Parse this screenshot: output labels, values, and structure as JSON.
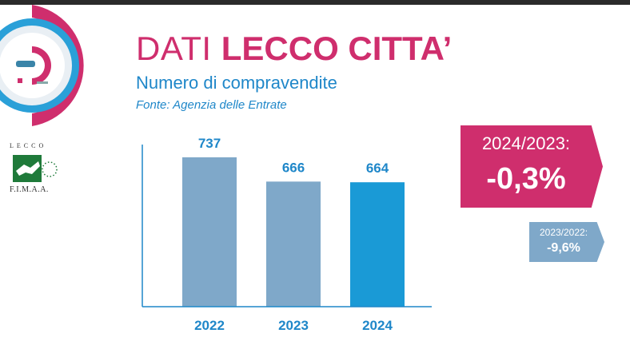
{
  "header": {
    "title_light": "DATI ",
    "title_bold": "LECCO CITTA’",
    "subtitle": "Numero di compravendite",
    "source": "Fonte: Agenzia delle Entrate"
  },
  "logo": {
    "fimaa_top": "LECCO",
    "fimaa_bottom": "F.I.M.A.A."
  },
  "badges": {
    "main": {
      "label": "2024/2023:",
      "value": "-0,3%"
    },
    "secondary": {
      "label": "2023/2022:",
      "value": "-9,6%"
    }
  },
  "colors": {
    "brand_pink": "#cf2e6d",
    "brand_blue": "#1f87c9",
    "bar_light": "#7fa8c9",
    "bar_highlight": "#1a9ad6",
    "axis": "#1f87c9"
  },
  "chart_data": {
    "type": "bar",
    "categories": [
      "2022",
      "2023",
      "2024"
    ],
    "values": [
      737,
      666,
      664
    ],
    "data_labels": [
      "737",
      "666",
      "664"
    ],
    "highlight_index": 2,
    "title": "",
    "xlabel": "",
    "ylabel": "",
    "ylim": [
      300,
      800
    ],
    "grid": false,
    "legend": "none"
  }
}
